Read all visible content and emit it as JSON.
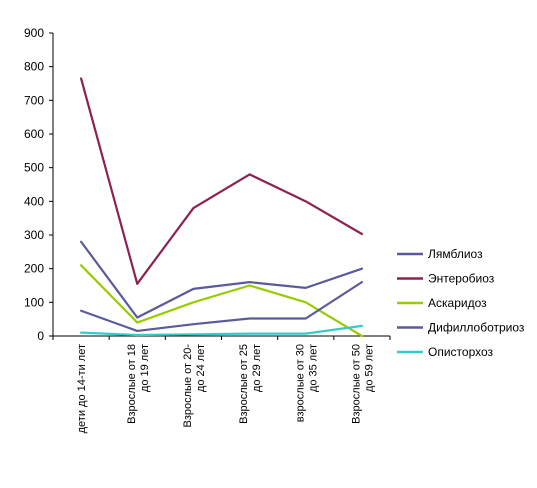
{
  "chart_data": {
    "type": "line",
    "categories": [
      [
        "дети до 14-ти лет"
      ],
      [
        "Взрослые от 18",
        "до 19 лет"
      ],
      [
        "Взрослые от 20-",
        "до 24 лет"
      ],
      [
        "Взрослые от 25",
        "до 29 лет"
      ],
      [
        "взрослые от 30",
        "до 35 лет"
      ],
      [
        "Взрослые от 50",
        "до 59 лет"
      ]
    ],
    "ylim": [
      0,
      900
    ],
    "yticks": [
      0,
      100,
      200,
      300,
      400,
      500,
      600,
      700,
      800,
      900
    ],
    "grid": false,
    "legend_position": "right",
    "series": [
      {
        "name": "Лямблиоз",
        "color": "#5a5a9c",
        "values": [
          280,
          55,
          140,
          160,
          143,
          200
        ]
      },
      {
        "name": "Энтеробиоз",
        "color": "#8b2252",
        "values": [
          765,
          155,
          380,
          480,
          400,
          303
        ]
      },
      {
        "name": "Аскаридоз",
        "color": "#99cc00",
        "values": [
          210,
          40,
          100,
          150,
          100,
          0
        ]
      },
      {
        "name": "Дифиллоботриоз",
        "color": "#5a5a9c",
        "values": [
          75,
          15,
          35,
          52,
          52,
          160
        ]
      },
      {
        "name": "Описторхоз",
        "color": "#33cccc",
        "values": [
          10,
          3,
          5,
          7,
          7,
          30
        ]
      }
    ]
  }
}
